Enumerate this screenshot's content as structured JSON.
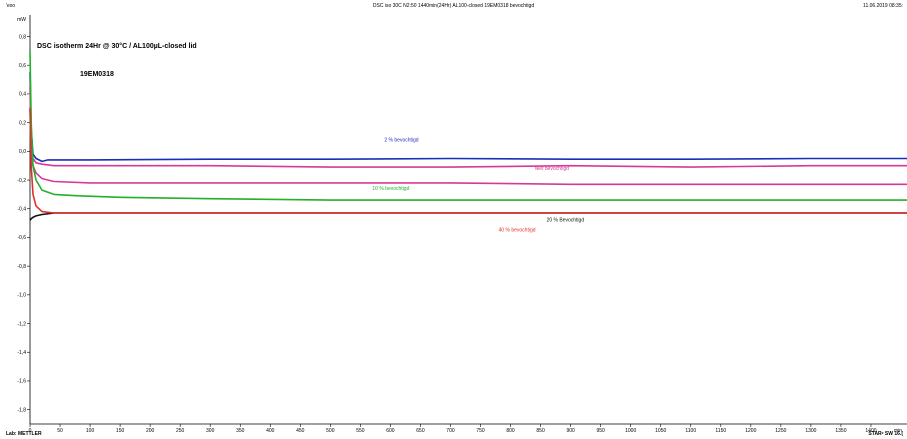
{
  "header": {
    "left": "'exo",
    "center": "DSC iso 30C N2:50  1440min(24Hr) AL100-closed 19EM0318 bevochtigd",
    "right": "11.06.2019 08:35:"
  },
  "footer": {
    "left": "Lab: METTLER",
    "right": "STARᵉ SW 16.("
  },
  "colors": {
    "blue": "#1a2fb8",
    "magenta": "#d63a96",
    "green": "#23b02a",
    "black": "#111111",
    "red": "#e0302a",
    "gridline": "#dddddd"
  },
  "chart_data": {
    "type": "line",
    "title": "DSC isotherm 24Hr @ 30°C / AL100µL-closed lid",
    "subtitle": "19EM0318",
    "xlabel": "min",
    "ylabel": "mW",
    "xlim": [
      0,
      1460
    ],
    "ylim": [
      -1.9,
      0.95
    ],
    "grid": false,
    "xticks": [
      0,
      50,
      100,
      150,
      200,
      250,
      300,
      350,
      400,
      450,
      500,
      550,
      600,
      650,
      700,
      750,
      800,
      850,
      900,
      950,
      1000,
      1050,
      1100,
      1150,
      1200,
      1250,
      1300,
      1350,
      1400
    ],
    "yticks": [
      0.8,
      0.6,
      0.4,
      0.2,
      0.0,
      -0.2,
      -0.4,
      -0.6,
      -0.8,
      -1.0,
      -1.2,
      -1.4,
      -1.6,
      -1.8
    ],
    "ytick_labels": [
      "0,8",
      "0,6",
      "0,4",
      "0,2",
      "0,0",
      "-0,2",
      "-0,4",
      "-0,6",
      "-0,8",
      "-1,0",
      "-1,2",
      "-1,4",
      "-1,6",
      "-1,8"
    ],
    "series": [
      {
        "name": "2 % bevochtigd",
        "color": "#1a2fb8",
        "x": [
          0,
          2,
          5,
          10,
          15,
          20,
          30,
          100,
          300,
          500,
          700,
          900,
          1100,
          1300,
          1460
        ],
        "y": [
          0.55,
          0.15,
          -0.02,
          -0.05,
          -0.06,
          -0.07,
          -0.06,
          -0.06,
          -0.055,
          -0.055,
          -0.05,
          -0.055,
          -0.055,
          -0.05,
          -0.05
        ]
      },
      {
        "name": "Niet bevochtigd",
        "color": "#d63a96",
        "x": [
          0,
          2,
          5,
          10,
          20,
          40,
          100,
          300,
          500,
          700,
          900,
          1100,
          1300,
          1460
        ],
        "y": [
          0.3,
          0.0,
          -0.05,
          -0.08,
          -0.09,
          -0.1,
          -0.1,
          -0.1,
          -0.11,
          -0.11,
          -0.1,
          -0.11,
          -0.1,
          -0.1
        ]
      },
      {
        "name": "Niet bevochtigd",
        "color": "#d63a96",
        "x": [
          0,
          2,
          5,
          10,
          20,
          40,
          100,
          300,
          500,
          700,
          900,
          1100,
          1300,
          1460
        ],
        "y": [
          0.45,
          0.0,
          -0.1,
          -0.15,
          -0.19,
          -0.21,
          -0.22,
          -0.22,
          -0.22,
          -0.22,
          -0.23,
          -0.23,
          -0.23,
          -0.23
        ]
      },
      {
        "name": "10 % bevochtigd",
        "color": "#23b02a",
        "x": [
          0,
          2,
          5,
          10,
          20,
          40,
          80,
          150,
          300,
          500,
          700,
          900,
          1100,
          1300,
          1460
        ],
        "y": [
          0.7,
          0.2,
          -0.1,
          -0.2,
          -0.27,
          -0.3,
          -0.31,
          -0.32,
          -0.33,
          -0.34,
          -0.34,
          -0.34,
          -0.34,
          -0.34,
          -0.34
        ]
      },
      {
        "name": "20 % Bevochtigd",
        "color": "#111111",
        "x": [
          0,
          2,
          5,
          10,
          20,
          40,
          100,
          300,
          500,
          700,
          900,
          1100,
          1300,
          1460
        ],
        "y": [
          -0.48,
          -0.47,
          -0.46,
          -0.45,
          -0.44,
          -0.43,
          -0.43,
          -0.43,
          -0.43,
          -0.43,
          -0.43,
          -0.43,
          -0.43,
          -0.43
        ]
      },
      {
        "name": "40 % bevochtigd",
        "color": "#e0302a",
        "x": [
          0,
          2,
          5,
          10,
          20,
          40,
          100,
          300,
          500,
          700,
          900,
          1100,
          1300,
          1460
        ],
        "y": [
          0.3,
          -0.1,
          -0.3,
          -0.38,
          -0.42,
          -0.43,
          -0.43,
          -0.43,
          -0.43,
          -0.43,
          -0.43,
          -0.43,
          -0.43,
          -0.43
        ]
      }
    ],
    "annotations": [
      {
        "text": "2 % bevochtigd",
        "x": 590,
        "y": 0.07,
        "color": "#1a2fb8"
      },
      {
        "text": "Niet bevochtigd",
        "x": 840,
        "y": -0.13,
        "color": "#d63a96"
      },
      {
        "text": "10 % bevochtigd",
        "x": 570,
        "y": -0.27,
        "color": "#23b02a"
      },
      {
        "text": "20 % Bevochtigd",
        "x": 860,
        "y": -0.49,
        "color": "#111111"
      },
      {
        "text": "40 % bevochtigd",
        "x": 780,
        "y": -0.56,
        "color": "#e0302a"
      }
    ]
  }
}
